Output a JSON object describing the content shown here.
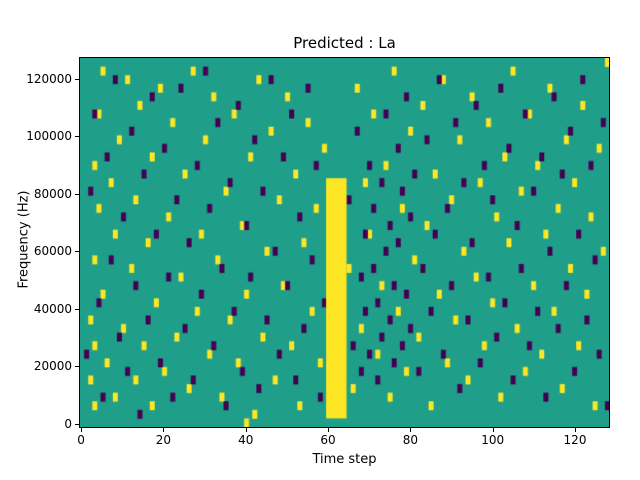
{
  "title": "Predicted : La",
  "axes": {
    "xlabel": "Time step",
    "ylabel": "Frequency (Hz)"
  },
  "chart_data": {
    "type": "heatmap",
    "title": "Predicted : La",
    "xlabel": "Time step",
    "ylabel": "Frequency (Hz)",
    "x_ticks": [
      0,
      20,
      40,
      60,
      80,
      100,
      120
    ],
    "y_ticks": [
      0,
      20000,
      40000,
      60000,
      80000,
      100000,
      120000
    ],
    "x_range": [
      0,
      129
    ],
    "y_range": [
      0,
      129000
    ],
    "n_cols": 129,
    "n_rows": 43,
    "hz_per_row": 3000,
    "legend": "none",
    "grid": false,
    "colors": {
      "background": "#1f9e89",
      "high": "#fde725",
      "low": "#440154",
      "axis": "#000000"
    },
    "prominent_bar": {
      "col_start": 60,
      "col_end": 64,
      "row_start": 1,
      "row_end": 28,
      "value": "high"
    },
    "yellow_cells": [
      [
        2,
        5
      ],
      [
        2,
        12
      ],
      [
        3,
        2
      ],
      [
        3,
        9
      ],
      [
        3,
        19
      ],
      [
        3,
        30
      ],
      [
        4,
        25
      ],
      [
        4,
        36
      ],
      [
        5,
        15
      ],
      [
        5,
        41
      ],
      [
        6,
        7
      ],
      [
        7,
        28
      ],
      [
        8,
        3
      ],
      [
        8,
        22
      ],
      [
        9,
        33
      ],
      [
        10,
        11
      ],
      [
        11,
        40
      ],
      [
        12,
        18
      ],
      [
        13,
        5
      ],
      [
        13,
        26
      ],
      [
        14,
        37
      ],
      [
        15,
        9
      ],
      [
        16,
        21
      ],
      [
        17,
        2
      ],
      [
        17,
        31
      ],
      [
        18,
        14
      ],
      [
        19,
        39
      ],
      [
        20,
        6
      ],
      [
        21,
        24
      ],
      [
        22,
        35
      ],
      [
        23,
        10
      ],
      [
        24,
        17
      ],
      [
        25,
        29
      ],
      [
        26,
        4
      ],
      [
        27,
        41
      ],
      [
        28,
        13
      ],
      [
        29,
        22
      ],
      [
        30,
        33
      ],
      [
        31,
        8
      ],
      [
        32,
        38
      ],
      [
        33,
        19
      ],
      [
        34,
        3
      ],
      [
        35,
        27
      ],
      [
        36,
        12
      ],
      [
        37,
        36
      ],
      [
        38,
        7
      ],
      [
        39,
        23
      ],
      [
        40,
        0
      ],
      [
        40,
        15
      ],
      [
        41,
        31
      ],
      [
        42,
        1
      ],
      [
        43,
        40
      ],
      [
        44,
        10
      ],
      [
        45,
        20
      ],
      [
        46,
        34
      ],
      [
        47,
        5
      ],
      [
        48,
        26
      ],
      [
        49,
        16
      ],
      [
        50,
        38
      ],
      [
        51,
        9
      ],
      [
        52,
        29
      ],
      [
        53,
        2
      ],
      [
        54,
        21
      ],
      [
        55,
        35
      ],
      [
        56,
        13
      ],
      [
        57,
        25
      ],
      [
        58,
        7
      ],
      [
        59,
        32
      ],
      [
        65,
        18
      ],
      [
        66,
        4
      ],
      [
        67,
        39
      ],
      [
        68,
        11
      ],
      [
        69,
        28
      ],
      [
        70,
        22
      ],
      [
        71,
        36
      ],
      [
        72,
        8
      ],
      [
        73,
        16
      ],
      [
        74,
        30
      ],
      [
        75,
        3
      ],
      [
        76,
        41
      ],
      [
        77,
        13
      ],
      [
        78,
        25
      ],
      [
        79,
        6
      ],
      [
        80,
        34
      ],
      [
        81,
        19
      ],
      [
        82,
        10
      ],
      [
        83,
        37
      ],
      [
        84,
        23
      ],
      [
        85,
        2
      ],
      [
        86,
        29
      ],
      [
        87,
        15
      ],
      [
        88,
        40
      ],
      [
        89,
        7
      ],
      [
        90,
        26
      ],
      [
        91,
        12
      ],
      [
        92,
        33
      ],
      [
        93,
        20
      ],
      [
        94,
        5
      ],
      [
        95,
        38
      ],
      [
        96,
        17
      ],
      [
        97,
        28
      ],
      [
        98,
        9
      ],
      [
        99,
        35
      ],
      [
        100,
        14
      ],
      [
        101,
        24
      ],
      [
        102,
        3
      ],
      [
        103,
        31
      ],
      [
        104,
        21
      ],
      [
        105,
        41
      ],
      [
        106,
        11
      ],
      [
        107,
        27
      ],
      [
        108,
        6
      ],
      [
        109,
        36
      ],
      [
        110,
        16
      ],
      [
        111,
        30
      ],
      [
        112,
        8
      ],
      [
        113,
        22
      ],
      [
        114,
        39
      ],
      [
        115,
        13
      ],
      [
        116,
        25
      ],
      [
        117,
        4
      ],
      [
        118,
        33
      ],
      [
        119,
        18
      ],
      [
        120,
        28
      ],
      [
        121,
        9
      ],
      [
        122,
        37
      ],
      [
        123,
        15
      ],
      [
        124,
        24
      ],
      [
        125,
        2
      ],
      [
        126,
        32
      ],
      [
        127,
        20
      ],
      [
        128,
        42
      ]
    ],
    "purple_cells": [
      [
        1,
        8
      ],
      [
        2,
        27
      ],
      [
        3,
        36
      ],
      [
        4,
        14
      ],
      [
        5,
        3
      ],
      [
        6,
        31
      ],
      [
        7,
        19
      ],
      [
        8,
        40
      ],
      [
        9,
        10
      ],
      [
        10,
        24
      ],
      [
        11,
        6
      ],
      [
        12,
        34
      ],
      [
        13,
        16
      ],
      [
        14,
        1
      ],
      [
        15,
        29
      ],
      [
        16,
        12
      ],
      [
        17,
        38
      ],
      [
        18,
        22
      ],
      [
        19,
        7
      ],
      [
        20,
        32
      ],
      [
        21,
        17
      ],
      [
        22,
        3
      ],
      [
        23,
        26
      ],
      [
        24,
        39
      ],
      [
        25,
        11
      ],
      [
        26,
        21
      ],
      [
        27,
        5
      ],
      [
        28,
        30
      ],
      [
        29,
        15
      ],
      [
        30,
        41
      ],
      [
        31,
        25
      ],
      [
        32,
        9
      ],
      [
        33,
        35
      ],
      [
        34,
        18
      ],
      [
        35,
        2
      ],
      [
        36,
        28
      ],
      [
        37,
        13
      ],
      [
        38,
        37
      ],
      [
        39,
        6
      ],
      [
        40,
        23
      ],
      [
        41,
        17
      ],
      [
        42,
        33
      ],
      [
        43,
        4
      ],
      [
        44,
        27
      ],
      [
        45,
        12
      ],
      [
        46,
        40
      ],
      [
        47,
        20
      ],
      [
        48,
        8
      ],
      [
        49,
        31
      ],
      [
        50,
        16
      ],
      [
        51,
        36
      ],
      [
        52,
        5
      ],
      [
        53,
        24
      ],
      [
        54,
        11
      ],
      [
        55,
        39
      ],
      [
        56,
        19
      ],
      [
        57,
        30
      ],
      [
        58,
        3
      ],
      [
        59,
        14
      ],
      [
        65,
        26
      ],
      [
        66,
        9
      ],
      [
        67,
        34
      ],
      [
        68,
        17
      ],
      [
        68,
        6
      ],
      [
        69,
        22
      ],
      [
        69,
        13
      ],
      [
        70,
        30
      ],
      [
        70,
        8
      ],
      [
        71,
        18
      ],
      [
        71,
        25
      ],
      [
        72,
        5
      ],
      [
        72,
        14
      ],
      [
        73,
        28
      ],
      [
        73,
        10
      ],
      [
        74,
        20
      ],
      [
        74,
        36
      ],
      [
        75,
        12
      ],
      [
        75,
        23
      ],
      [
        76,
        7
      ],
      [
        76,
        16
      ],
      [
        77,
        32
      ],
      [
        77,
        21
      ],
      [
        78,
        9
      ],
      [
        78,
        27
      ],
      [
        79,
        15
      ],
      [
        79,
        38
      ],
      [
        80,
        24
      ],
      [
        80,
        11
      ],
      [
        81,
        29
      ],
      [
        82,
        6
      ],
      [
        83,
        18
      ],
      [
        84,
        33
      ],
      [
        85,
        13
      ],
      [
        86,
        22
      ],
      [
        87,
        40
      ],
      [
        88,
        8
      ],
      [
        89,
        25
      ],
      [
        90,
        16
      ],
      [
        91,
        35
      ],
      [
        92,
        4
      ],
      [
        93,
        28
      ],
      [
        94,
        12
      ],
      [
        95,
        21
      ],
      [
        96,
        37
      ],
      [
        97,
        7
      ],
      [
        98,
        30
      ],
      [
        99,
        17
      ],
      [
        100,
        26
      ],
      [
        101,
        10
      ],
      [
        102,
        39
      ],
      [
        103,
        14
      ],
      [
        104,
        32
      ],
      [
        105,
        5
      ],
      [
        106,
        23
      ],
      [
        107,
        18
      ],
      [
        108,
        36
      ],
      [
        109,
        9
      ],
      [
        110,
        27
      ],
      [
        111,
        13
      ],
      [
        112,
        31
      ],
      [
        113,
        3
      ],
      [
        114,
        20
      ],
      [
        115,
        38
      ],
      [
        116,
        11
      ],
      [
        117,
        29
      ],
      [
        118,
        16
      ],
      [
        119,
        34
      ],
      [
        120,
        6
      ],
      [
        121,
        22
      ],
      [
        122,
        40
      ],
      [
        123,
        12
      ],
      [
        124,
        30
      ],
      [
        125,
        19
      ],
      [
        126,
        8
      ],
      [
        127,
        35
      ],
      [
        128,
        2
      ]
    ]
  }
}
